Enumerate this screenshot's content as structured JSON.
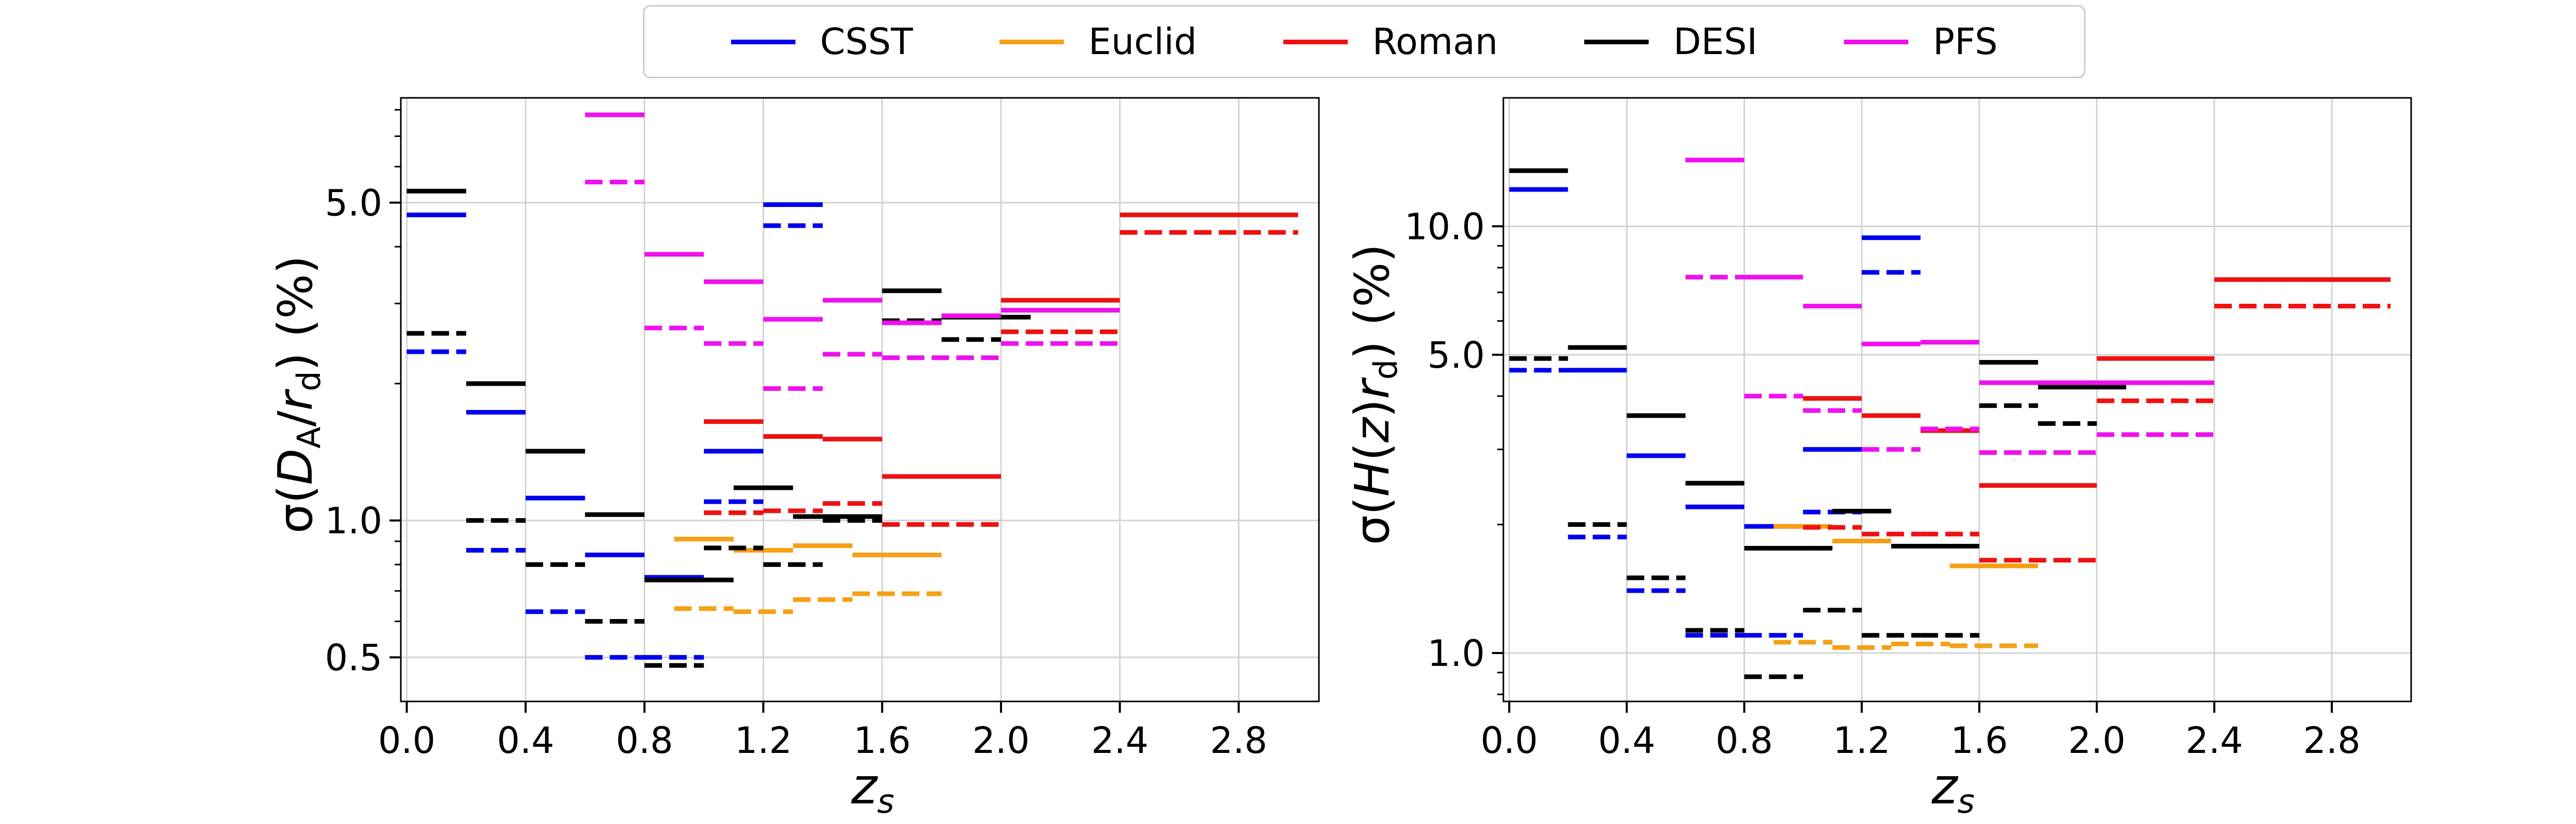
{
  "legend": [
    {
      "name": "CSST",
      "color": "#0000ee"
    },
    {
      "name": "Euclid",
      "color": "#f5a015"
    },
    {
      "name": "Roman",
      "color": "#ee1111"
    },
    {
      "name": "DESI",
      "color": "#000000"
    },
    {
      "name": "PFS",
      "color": "#ee11ee"
    }
  ],
  "chart_data": [
    {
      "type": "line",
      "title": "",
      "xlabel": "z_s",
      "ylabel": "σ(D_A/r_d) (%)",
      "yscale": "log",
      "xlim": [
        -0.02,
        3.07
      ],
      "ylim": [
        0.4,
        8.5
      ],
      "xticks": [
        0.0,
        0.4,
        0.8,
        1.2,
        1.6,
        2.0,
        2.4,
        2.8
      ],
      "xtick_labels": [
        "0.0",
        "0.4",
        "0.8",
        "1.2",
        "1.6",
        "2.0",
        "2.4",
        "2.8"
      ],
      "yticks": [
        0.5,
        1.0,
        5.0
      ],
      "ytick_labels": [
        "0.5",
        "1.0",
        "5.0"
      ],
      "grid": true,
      "series": [
        {
          "name": "CSST",
          "style": "solid",
          "segments": [
            [
              0.0,
              0.2,
              4.7
            ],
            [
              0.2,
              0.4,
              1.73
            ],
            [
              0.4,
              0.6,
              1.12
            ],
            [
              0.6,
              0.8,
              0.84
            ],
            [
              0.8,
              1.0,
              0.75
            ],
            [
              1.0,
              1.2,
              1.42
            ],
            [
              1.2,
              1.4,
              4.95
            ]
          ]
        },
        {
          "name": "CSST",
          "style": "dashed",
          "segments": [
            [
              0.0,
              0.2,
              2.35
            ],
            [
              0.2,
              0.4,
              0.86
            ],
            [
              0.4,
              0.6,
              0.63
            ],
            [
              0.6,
              0.8,
              0.5
            ],
            [
              0.8,
              1.0,
              0.5
            ],
            [
              1.0,
              1.2,
              1.1
            ],
            [
              1.2,
              1.4,
              4.45
            ]
          ]
        },
        {
          "name": "Euclid",
          "style": "solid",
          "segments": [
            [
              0.9,
              1.1,
              0.91
            ],
            [
              1.1,
              1.3,
              0.86
            ],
            [
              1.3,
              1.5,
              0.88
            ],
            [
              1.5,
              1.8,
              0.84
            ]
          ]
        },
        {
          "name": "Euclid",
          "style": "dashed",
          "segments": [
            [
              0.9,
              1.1,
              0.64
            ],
            [
              1.1,
              1.3,
              0.63
            ],
            [
              1.3,
              1.5,
              0.67
            ],
            [
              1.5,
              1.8,
              0.69
            ]
          ]
        },
        {
          "name": "Roman",
          "style": "solid",
          "segments": [
            [
              1.0,
              1.2,
              1.65
            ],
            [
              1.2,
              1.4,
              1.53
            ],
            [
              1.4,
              1.6,
              1.51
            ],
            [
              1.6,
              2.0,
              1.25
            ],
            [
              2.0,
              2.4,
              3.05
            ],
            [
              2.4,
              3.0,
              4.7
            ]
          ]
        },
        {
          "name": "Roman",
          "style": "dashed",
          "segments": [
            [
              1.0,
              1.2,
              1.04
            ],
            [
              1.2,
              1.4,
              1.05
            ],
            [
              1.4,
              1.6,
              1.09
            ],
            [
              1.6,
              2.0,
              0.98
            ],
            [
              2.0,
              2.4,
              2.6
            ],
            [
              2.4,
              3.0,
              4.3
            ]
          ]
        },
        {
          "name": "DESI",
          "style": "solid",
          "segments": [
            [
              0.0,
              0.2,
              5.3
            ],
            [
              0.2,
              0.4,
              2.0
            ],
            [
              0.4,
              0.6,
              1.42
            ],
            [
              0.6,
              0.8,
              1.03
            ],
            [
              0.8,
              1.1,
              0.74
            ],
            [
              1.1,
              1.3,
              1.18
            ],
            [
              1.3,
              1.6,
              1.02
            ],
            [
              1.6,
              1.8,
              3.2
            ],
            [
              1.8,
              2.1,
              2.8
            ]
          ]
        },
        {
          "name": "DESI",
          "style": "dashed",
          "segments": [
            [
              0.0,
              0.2,
              2.58
            ],
            [
              0.2,
              0.4,
              1.0
            ],
            [
              0.4,
              0.6,
              0.8
            ],
            [
              0.6,
              0.8,
              0.6
            ],
            [
              0.8,
              1.0,
              0.48
            ],
            [
              1.0,
              1.2,
              0.87
            ],
            [
              1.2,
              1.4,
              0.8
            ],
            [
              1.4,
              1.6,
              1.0
            ],
            [
              1.6,
              1.8,
              2.75
            ],
            [
              1.8,
              2.0,
              2.5
            ]
          ]
        },
        {
          "name": "PFS",
          "style": "solid",
          "segments": [
            [
              0.6,
              0.8,
              7.8
            ],
            [
              0.8,
              1.0,
              3.85
            ],
            [
              1.0,
              1.2,
              3.35
            ],
            [
              1.2,
              1.4,
              2.77
            ],
            [
              1.4,
              1.6,
              3.05
            ],
            [
              1.6,
              1.8,
              2.72
            ],
            [
              1.8,
              2.0,
              2.82
            ],
            [
              2.0,
              2.4,
              2.9
            ]
          ]
        },
        {
          "name": "PFS",
          "style": "dashed",
          "segments": [
            [
              0.6,
              0.8,
              5.55
            ],
            [
              0.8,
              1.0,
              2.65
            ],
            [
              1.0,
              1.2,
              2.45
            ],
            [
              1.2,
              1.4,
              1.95
            ],
            [
              1.4,
              1.6,
              2.32
            ],
            [
              1.6,
              2.0,
              2.28
            ],
            [
              2.0,
              2.4,
              2.45
            ]
          ]
        }
      ]
    },
    {
      "type": "line",
      "title": "",
      "xlabel": "z_s",
      "ylabel": "σ(H(z) r_d) (%)",
      "yscale": "log",
      "xlim": [
        -0.02,
        3.07
      ],
      "ylim": [
        0.77,
        20.0
      ],
      "xticks": [
        0.0,
        0.4,
        0.8,
        1.2,
        1.6,
        2.0,
        2.4,
        2.8
      ],
      "xtick_labels": [
        "0.0",
        "0.4",
        "0.8",
        "1.2",
        "1.6",
        "2.0",
        "2.4",
        "2.8"
      ],
      "yticks": [
        1.0,
        5.0,
        10.0
      ],
      "ytick_labels": [
        "1.0",
        "5.0",
        "10.0"
      ],
      "grid": true,
      "series": [
        {
          "name": "CSST",
          "style": "solid",
          "segments": [
            [
              0.0,
              0.2,
              12.2
            ],
            [
              0.2,
              0.4,
              4.6
            ],
            [
              0.4,
              0.6,
              2.9
            ],
            [
              0.6,
              0.8,
              2.2
            ],
            [
              0.8,
              1.0,
              1.98
            ],
            [
              1.0,
              1.2,
              3.0
            ],
            [
              1.2,
              1.4,
              9.4
            ]
          ]
        },
        {
          "name": "CSST",
          "style": "dashed",
          "segments": [
            [
              0.0,
              0.2,
              4.6
            ],
            [
              0.2,
              0.4,
              1.87
            ],
            [
              0.4,
              0.6,
              1.4
            ],
            [
              0.6,
              0.8,
              1.1
            ],
            [
              0.8,
              1.0,
              1.1
            ],
            [
              1.0,
              1.2,
              2.14
            ],
            [
              1.2,
              1.4,
              7.8
            ]
          ]
        },
        {
          "name": "Euclid",
          "style": "solid",
          "segments": [
            [
              0.9,
              1.1,
              1.98
            ],
            [
              1.1,
              1.3,
              1.83
            ],
            [
              1.5,
              1.8,
              1.6
            ]
          ]
        },
        {
          "name": "Euclid",
          "style": "dashed",
          "segments": [
            [
              0.9,
              1.1,
              1.06
            ],
            [
              1.1,
              1.3,
              1.03
            ],
            [
              1.3,
              1.5,
              1.05
            ],
            [
              1.5,
              1.8,
              1.04
            ]
          ]
        },
        {
          "name": "Roman",
          "style": "solid",
          "segments": [
            [
              1.0,
              1.2,
              3.95
            ],
            [
              1.2,
              1.4,
              3.6
            ],
            [
              1.4,
              1.6,
              3.32
            ],
            [
              1.6,
              2.0,
              2.47
            ],
            [
              2.0,
              2.4,
              4.9
            ],
            [
              2.4,
              3.0,
              7.5
            ]
          ]
        },
        {
          "name": "Roman",
          "style": "dashed",
          "segments": [
            [
              1.0,
              1.2,
              1.97
            ],
            [
              1.2,
              1.4,
              1.9
            ],
            [
              1.4,
              1.6,
              1.9
            ],
            [
              1.6,
              2.0,
              1.65
            ],
            [
              2.0,
              2.4,
              3.9
            ],
            [
              2.4,
              3.0,
              6.5
            ]
          ]
        },
        {
          "name": "DESI",
          "style": "solid",
          "segments": [
            [
              0.0,
              0.2,
              13.5
            ],
            [
              0.2,
              0.4,
              5.2
            ],
            [
              0.4,
              0.6,
              3.6
            ],
            [
              0.6,
              0.8,
              2.5
            ],
            [
              0.8,
              1.1,
              1.76
            ],
            [
              1.1,
              1.3,
              2.15
            ],
            [
              1.3,
              1.6,
              1.78
            ],
            [
              1.6,
              1.8,
              4.8
            ],
            [
              1.8,
              2.1,
              4.2
            ]
          ]
        },
        {
          "name": "DESI",
          "style": "dashed",
          "segments": [
            [
              0.0,
              0.2,
              4.9
            ],
            [
              0.2,
              0.4,
              2.0
            ],
            [
              0.4,
              0.6,
              1.5
            ],
            [
              0.6,
              0.8,
              1.13
            ],
            [
              0.8,
              1.0,
              0.88
            ],
            [
              1.0,
              1.2,
              1.26
            ],
            [
              1.2,
              1.4,
              1.1
            ],
            [
              1.4,
              1.6,
              1.1
            ],
            [
              1.6,
              1.8,
              3.8
            ],
            [
              1.8,
              2.0,
              3.45
            ]
          ]
        },
        {
          "name": "PFS",
          "style": "solid",
          "segments": [
            [
              0.6,
              0.8,
              14.3
            ],
            [
              0.8,
              1.0,
              7.6
            ],
            [
              1.0,
              1.2,
              6.5
            ],
            [
              1.2,
              1.4,
              5.3
            ],
            [
              1.4,
              1.6,
              5.35
            ],
            [
              1.6,
              2.0,
              4.3
            ],
            [
              2.0,
              2.4,
              4.3
            ]
          ]
        },
        {
          "name": "PFS",
          "style": "dashed",
          "segments": [
            [
              0.6,
              0.8,
              7.6
            ],
            [
              0.8,
              1.0,
              4.0
            ],
            [
              1.0,
              1.2,
              3.7
            ],
            [
              1.2,
              1.4,
              3.0
            ],
            [
              1.4,
              1.6,
              3.35
            ],
            [
              1.6,
              2.0,
              2.95
            ],
            [
              2.0,
              2.4,
              3.25
            ]
          ]
        }
      ]
    }
  ]
}
